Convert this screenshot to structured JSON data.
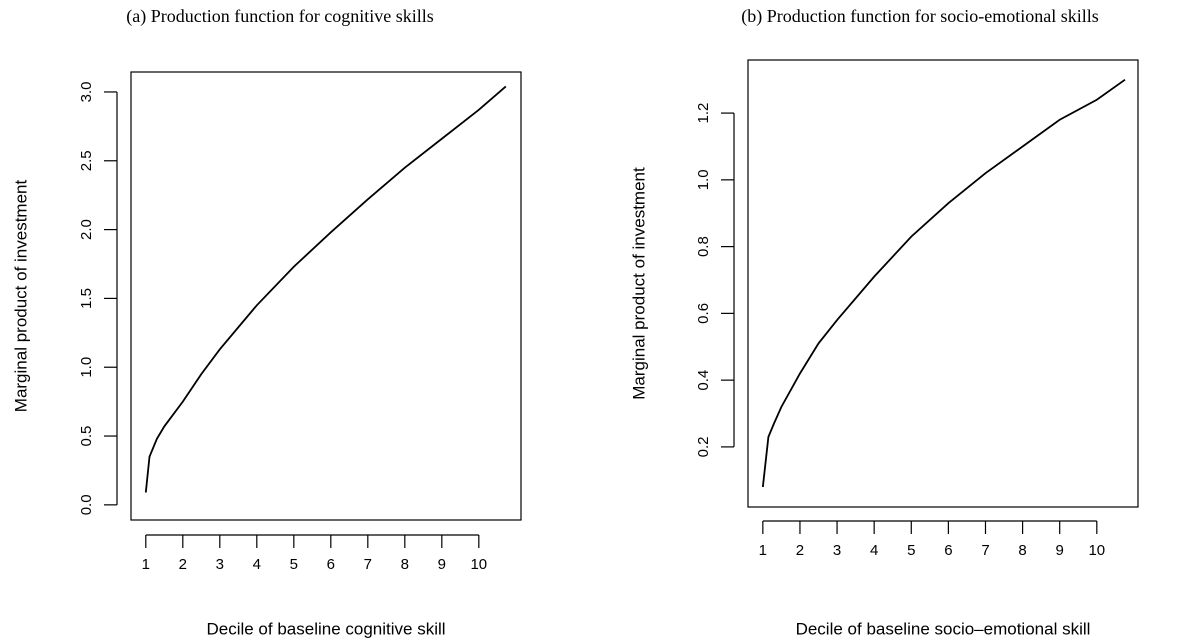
{
  "chart_data": [
    {
      "type": "line",
      "title": "(a) Production function for cognitive skills",
      "x_label": "Decile of baseline cognitive skill",
      "y_label": "Marginal product of investment",
      "x": [
        1,
        1.1,
        1.3,
        1.5,
        2,
        2.5,
        3,
        4,
        5,
        6,
        7,
        8,
        9,
        10,
        10.73
      ],
      "values": [
        0.09,
        0.35,
        0.48,
        0.57,
        0.75,
        0.95,
        1.13,
        1.45,
        1.73,
        1.98,
        2.22,
        2.45,
        2.66,
        2.87,
        3.04
      ],
      "color": "#000000",
      "xlim": [
        0.6,
        11.14
      ],
      "ylim": [
        -0.11,
        3.145
      ],
      "xticks": [
        1,
        2,
        3,
        4,
        5,
        6,
        7,
        8,
        9,
        10
      ],
      "yticks": [
        {
          "value": 0,
          "label": "0.0"
        },
        0.5,
        {
          "value": 1,
          "label": "1.0"
        },
        1.5,
        {
          "value": 2,
          "label": "2.0"
        },
        2.5,
        {
          "value": 3,
          "label": "3.0"
        }
      ]
    },
    {
      "type": "line",
      "title": "(b) Production function for socio-emotional skills",
      "x_label": "Decile of baseline socio–emotional skill",
      "y_label": "Marginal product of investment",
      "x": [
        1,
        1.15,
        1.3,
        1.5,
        2,
        2.5,
        3,
        4,
        5,
        6,
        7,
        8,
        9,
        10,
        10.76
      ],
      "values": [
        0.08,
        0.23,
        0.27,
        0.32,
        0.42,
        0.51,
        0.58,
        0.71,
        0.83,
        0.93,
        1.02,
        1.1,
        1.18,
        1.24,
        1.3
      ],
      "color": "#000000",
      "xlim": [
        0.6,
        11.11
      ],
      "ylim": [
        0.02,
        1.359
      ],
      "xticks": [
        1,
        2,
        3,
        4,
        5,
        6,
        7,
        8,
        9,
        10
      ],
      "yticks": [
        0.2,
        0.4,
        0.6,
        0.8,
        {
          "value": 1,
          "label": "1.0"
        },
        1.2
      ]
    }
  ]
}
